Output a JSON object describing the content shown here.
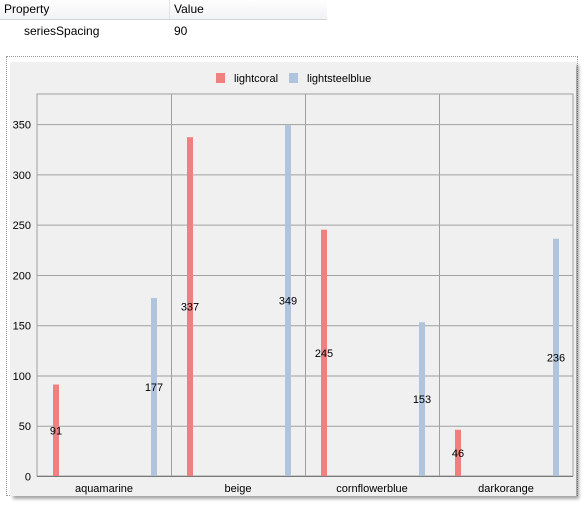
{
  "property_table": {
    "header_property": "Property",
    "header_value": "Value",
    "rows": [
      {
        "property": "seriesSpacing",
        "value": "90"
      }
    ]
  },
  "chart_data": {
    "type": "bar",
    "title": "",
    "xlabel": "",
    "ylabel": "",
    "categories": [
      "aquamarine",
      "beige",
      "cornflowerblue",
      "darkorange"
    ],
    "series": [
      {
        "name": "lightcoral",
        "color": "#f08080",
        "values": [
          91,
          337,
          245,
          46
        ]
      },
      {
        "name": "lightsteelblue",
        "color": "#b0c4de",
        "values": [
          177,
          349,
          153,
          236
        ]
      }
    ],
    "ylim": [
      0,
      380
    ],
    "yticks": [
      0,
      50,
      100,
      150,
      200,
      250,
      300,
      350
    ],
    "legend_position": "top-center",
    "grid": true,
    "data_labels": true,
    "colors": {
      "plot_background": "#f0f0f0",
      "grid": "#a0a0a0"
    }
  }
}
